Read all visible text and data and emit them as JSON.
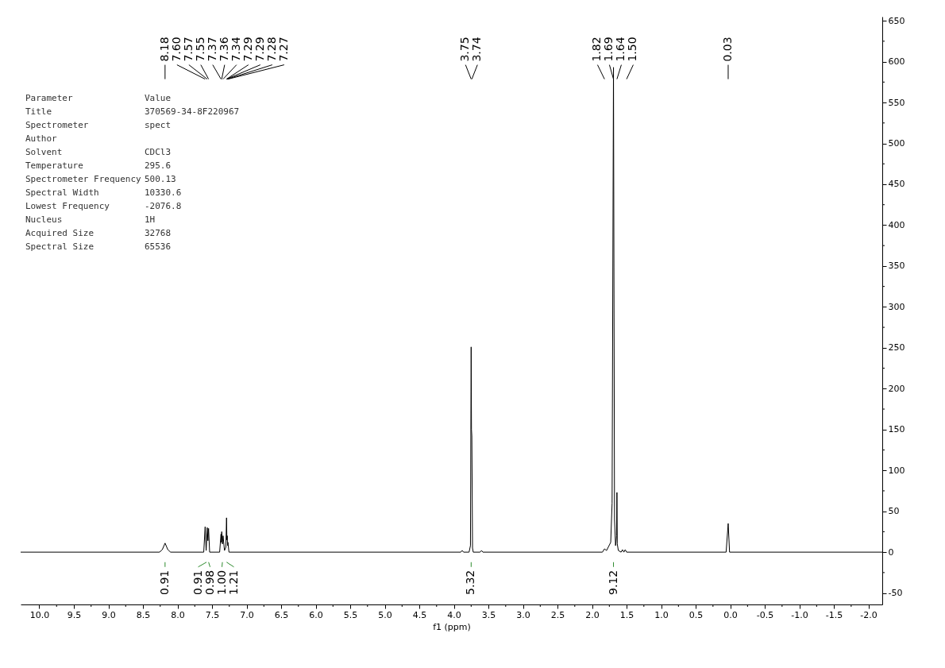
{
  "chart_data": {
    "type": "line",
    "xlabel": "f1 (ppm)",
    "series": [
      {
        "color": "#000000",
        "x": [
          10.27,
          8.26,
          8.22,
          8.18,
          8.14,
          8.1,
          7.62,
          7.6,
          7.585,
          7.57,
          7.56,
          7.55,
          7.535,
          7.39,
          7.37,
          7.365,
          7.36,
          7.35,
          7.34,
          7.32,
          7.3,
          7.29,
          7.285,
          7.28,
          7.275,
          7.27,
          7.255,
          3.9,
          3.88,
          3.86,
          3.78,
          3.76,
          3.75,
          3.745,
          3.74,
          3.73,
          3.72,
          3.62,
          3.6,
          3.58,
          1.85,
          1.82,
          1.79,
          1.73,
          1.71,
          1.69,
          1.675,
          1.66,
          1.645,
          1.64,
          1.635,
          1.62,
          1.58,
          1.56,
          1.54,
          1.52,
          1.5,
          0.06,
          0.03,
          0.01,
          -2.2
        ],
        "values": [
          0,
          0,
          3,
          11,
          3,
          0,
          0,
          31,
          2,
          30,
          14,
          29,
          0,
          0,
          22,
          12,
          25,
          10,
          20,
          2,
          6,
          42,
          15,
          20,
          8,
          12,
          0,
          0,
          2,
          0,
          0,
          8,
          251,
          150,
          142,
          5,
          0,
          0,
          2,
          0,
          0,
          4,
          2,
          12,
          60,
          593,
          40,
          8,
          20,
          73,
          10,
          2,
          0,
          3,
          0,
          3,
          0,
          0,
          35,
          0,
          0
        ]
      }
    ],
    "xlim": [
      10.27,
      -2.2
    ],
    "xticks": [
      {
        "value": 10,
        "label": "10.0"
      },
      {
        "value": 9.75,
        "label": null
      },
      {
        "value": 9.5,
        "label": "9.5"
      },
      {
        "value": 9.25,
        "label": null
      },
      {
        "value": 9,
        "label": "9.0"
      },
      {
        "value": 8.75,
        "label": null
      },
      {
        "value": 8.5,
        "label": "8.5"
      },
      {
        "value": 8.25,
        "label": null
      },
      {
        "value": 8,
        "label": "8.0"
      },
      {
        "value": 7.75,
        "label": null
      },
      {
        "value": 7.5,
        "label": "7.5"
      },
      {
        "value": 7.25,
        "label": null
      },
      {
        "value": 7,
        "label": "7.0"
      },
      {
        "value": 6.75,
        "label": null
      },
      {
        "value": 6.5,
        "label": "6.5"
      },
      {
        "value": 6.25,
        "label": null
      },
      {
        "value": 6,
        "label": "6.0"
      },
      {
        "value": 5.75,
        "label": null
      },
      {
        "value": 5.5,
        "label": "5.5"
      },
      {
        "value": 5.25,
        "label": null
      },
      {
        "value": 5,
        "label": "5.0"
      },
      {
        "value": 4.75,
        "label": null
      },
      {
        "value": 4.5,
        "label": "4.5"
      },
      {
        "value": 4.25,
        "label": null
      },
      {
        "value": 4,
        "label": "4.0"
      },
      {
        "value": 3.75,
        "label": null
      },
      {
        "value": 3.5,
        "label": "3.5"
      },
      {
        "value": 3.25,
        "label": null
      },
      {
        "value": 3,
        "label": "3.0"
      },
      {
        "value": 2.75,
        "label": null
      },
      {
        "value": 2.5,
        "label": "2.5"
      },
      {
        "value": 2.25,
        "label": null
      },
      {
        "value": 2,
        "label": "2.0"
      },
      {
        "value": 1.75,
        "label": null
      },
      {
        "value": 1.5,
        "label": "1.5"
      },
      {
        "value": 1.25,
        "label": null
      },
      {
        "value": 1,
        "label": "1.0"
      },
      {
        "value": 0.75,
        "label": null
      },
      {
        "value": 0.5,
        "label": "0.5"
      },
      {
        "value": 0.25,
        "label": null
      },
      {
        "value": 0,
        "label": "0.0"
      },
      {
        "value": -0.25,
        "label": null
      },
      {
        "value": -0.5,
        "label": "-0.5"
      },
      {
        "value": -0.75,
        "label": null
      },
      {
        "value": -1,
        "label": "-1.0"
      },
      {
        "value": -1.25,
        "label": null
      },
      {
        "value": -1.5,
        "label": "-1.5"
      },
      {
        "value": -1.75,
        "label": null
      },
      {
        "value": -2,
        "label": "-2.0"
      }
    ],
    "ylim": [
      -64,
      655
    ],
    "yticks": [
      -50,
      {
        "value": -25,
        "label": null
      },
      0,
      {
        "value": 25,
        "label": null
      },
      50,
      {
        "value": 75,
        "label": null
      },
      100,
      {
        "value": 125,
        "label": null
      },
      150,
      {
        "value": 175,
        "label": null
      },
      200,
      {
        "value": 225,
        "label": null
      },
      250,
      {
        "value": 275,
        "label": null
      },
      300,
      {
        "value": 325,
        "label": null
      },
      350,
      {
        "value": 375,
        "label": null
      },
      400,
      {
        "value": 425,
        "label": null
      },
      450,
      {
        "value": 475,
        "label": null
      },
      500,
      {
        "value": 525,
        "label": null
      },
      550,
      {
        "value": 575,
        "label": null
      },
      600,
      {
        "value": 625,
        "label": null
      },
      650
    ],
    "grid": false,
    "marker": "none",
    "line_style": "solid",
    "annotations": [
      "Parameter",
      "Value",
      "Title",
      "370569-34-8F220967",
      "Spectrometer",
      "spect",
      "Author",
      null,
      "Solvent",
      "CDCl3",
      "Temperature",
      "295.6",
      "Spectrometer Frequency",
      "500.13",
      "Spectral Width",
      "10330.6",
      "Lowest Frequency",
      "-2076.8",
      "Nucleus",
      "1H",
      "Acquired Size",
      "32768",
      "Spectral Size",
      "65536",
      {
        "text": "8.18",
        "x": 8.18
      },
      {
        "text": "7.60",
        "x": 7.6
      },
      {
        "text": "7.57",
        "x": 7.57
      },
      {
        "text": "7.55",
        "x": 7.55
      },
      {
        "text": "7.37",
        "x": 7.37
      },
      {
        "text": "7.36",
        "x": 7.36
      },
      {
        "text": "7.34",
        "x": 7.34
      },
      {
        "text": "7.29",
        "x": 7.29
      },
      {
        "text": "7.29",
        "x": 7.29
      },
      {
        "text": "7.28",
        "x": 7.28
      },
      {
        "text": "7.27",
        "x": 7.27
      },
      {
        "text": "3.75",
        "x": 3.75
      },
      {
        "text": "3.74",
        "x": 3.74
      },
      {
        "text": "1.82",
        "x": 1.82
      },
      {
        "text": "1.69",
        "x": 1.69
      },
      {
        "text": "1.64",
        "x": 1.64
      },
      {
        "text": "1.50",
        "x": 1.5
      },
      {
        "text": "0.03",
        "x": 0.03
      },
      {
        "text": "0.91",
        "x": 8.18
      },
      {
        "text": "0.91",
        "x": 7.58
      },
      {
        "text": "0.98",
        "x": 7.55
      },
      {
        "text": "1.00",
        "x": 7.35
      },
      {
        "text": "1.21",
        "x": 7.29
      },
      {
        "text": "5.32",
        "x": 3.75
      },
      {
        "text": "9.12",
        "x": 1.69
      }
    ]
  }
}
